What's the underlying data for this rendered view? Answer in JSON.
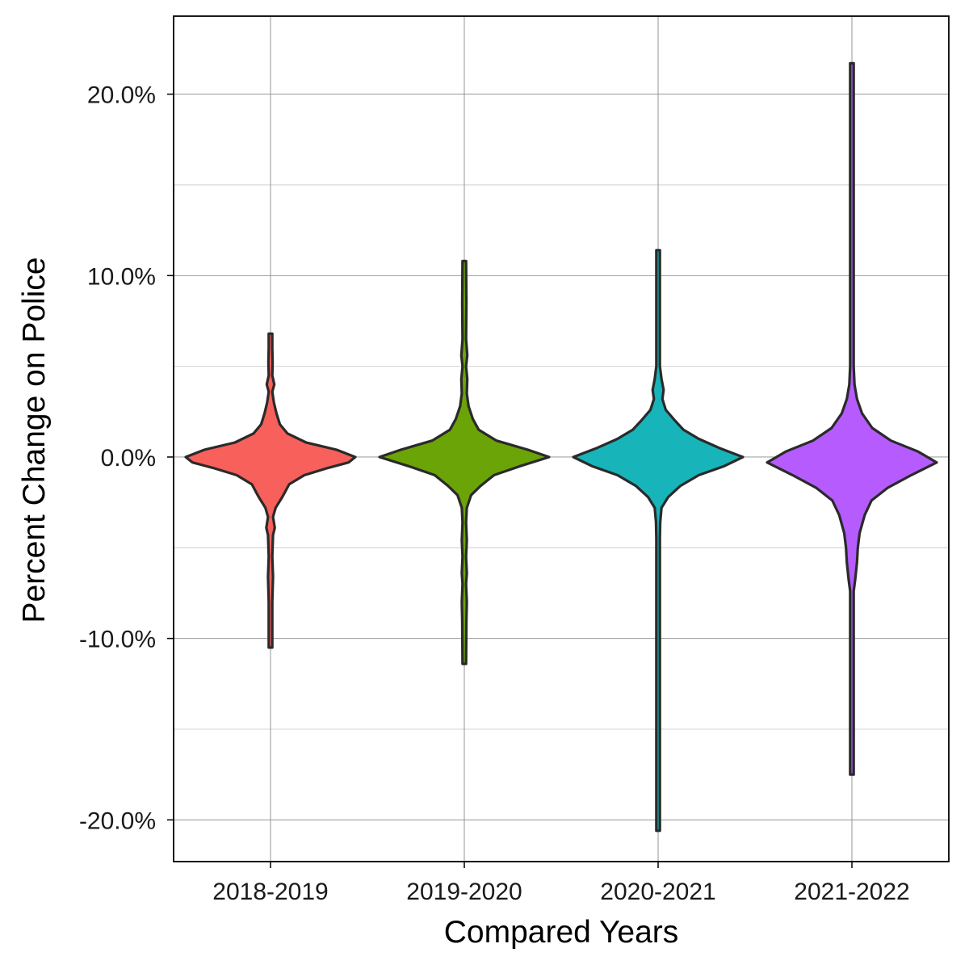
{
  "chart_data": {
    "type": "violin",
    "title": "",
    "xlabel": "Compared Years",
    "ylabel": "Percent Change on Police",
    "ylim": [
      -22.3,
      24.3
    ],
    "y_ticks": [
      -20,
      -10,
      0,
      10,
      20
    ],
    "y_tick_labels": [
      "-20.0%",
      "-10.0%",
      "0.0%",
      "10.0%",
      "20.0%"
    ],
    "y_minor_ticks": [
      -15,
      -5,
      5,
      15
    ],
    "grid": true,
    "legend": "none",
    "categories": [
      "2018-2019",
      "2019-2020",
      "2020-2021",
      "2021-2022"
    ],
    "series": [
      {
        "category": "2018-2019",
        "color": "#F8605B",
        "min": -10.5,
        "max": 6.8,
        "density_profile": [
          [
            -10.5,
            0.02
          ],
          [
            -8.0,
            0.02
          ],
          [
            -6.6,
            0.03
          ],
          [
            -5.5,
            0.02
          ],
          [
            -4.3,
            0.03
          ],
          [
            -3.9,
            0.05
          ],
          [
            -3.3,
            0.03
          ],
          [
            -2.8,
            0.06
          ],
          [
            -2.2,
            0.14
          ],
          [
            -1.5,
            0.22
          ],
          [
            -1.0,
            0.4
          ],
          [
            -0.6,
            0.68
          ],
          [
            -0.3,
            0.92
          ],
          [
            0.0,
            1.0
          ],
          [
            0.4,
            0.78
          ],
          [
            0.8,
            0.42
          ],
          [
            1.3,
            0.2
          ],
          [
            1.8,
            0.11
          ],
          [
            2.4,
            0.07
          ],
          [
            3.0,
            0.04
          ],
          [
            3.6,
            0.02
          ],
          [
            4.0,
            0.045
          ],
          [
            4.5,
            0.02
          ],
          [
            5.2,
            0.025
          ],
          [
            6.0,
            0.015
          ],
          [
            6.8,
            0.01
          ]
        ]
      },
      {
        "category": "2019-2020",
        "color": "#6BA406",
        "min": -11.4,
        "max": 10.8,
        "density_profile": [
          [
            -11.4,
            0.02
          ],
          [
            -9.0,
            0.025
          ],
          [
            -8.0,
            0.03
          ],
          [
            -7.0,
            0.02
          ],
          [
            -6.4,
            0.03
          ],
          [
            -5.5,
            0.015
          ],
          [
            -4.6,
            0.03
          ],
          [
            -3.6,
            0.015
          ],
          [
            -2.8,
            0.03
          ],
          [
            -2.1,
            0.08
          ],
          [
            -1.6,
            0.19
          ],
          [
            -1.0,
            0.35
          ],
          [
            -0.5,
            0.66
          ],
          [
            0.0,
            1.0
          ],
          [
            0.4,
            0.75
          ],
          [
            0.9,
            0.38
          ],
          [
            1.5,
            0.17
          ],
          [
            2.1,
            0.1
          ],
          [
            2.8,
            0.05
          ],
          [
            3.5,
            0.03
          ],
          [
            4.3,
            0.035
          ],
          [
            5.0,
            0.02
          ],
          [
            5.6,
            0.035
          ],
          [
            6.5,
            0.02
          ],
          [
            8.5,
            0.025
          ],
          [
            10.8,
            0.01
          ]
        ]
      },
      {
        "category": "2020-2021",
        "color": "#17B4BA",
        "min": -20.6,
        "max": 11.4,
        "density_profile": [
          [
            -20.6,
            0.01
          ],
          [
            -12.0,
            0.012
          ],
          [
            -10.0,
            0.013
          ],
          [
            -7.5,
            0.02
          ],
          [
            -6.0,
            0.015
          ],
          [
            -4.5,
            0.02
          ],
          [
            -3.6,
            0.025
          ],
          [
            -2.8,
            0.04
          ],
          [
            -2.2,
            0.12
          ],
          [
            -1.6,
            0.26
          ],
          [
            -1.0,
            0.48
          ],
          [
            -0.5,
            0.78
          ],
          [
            0.0,
            1.0
          ],
          [
            0.5,
            0.72
          ],
          [
            1.0,
            0.48
          ],
          [
            1.5,
            0.3
          ],
          [
            2.0,
            0.2
          ],
          [
            2.6,
            0.09
          ],
          [
            3.2,
            0.05
          ],
          [
            3.7,
            0.065
          ],
          [
            4.3,
            0.04
          ],
          [
            5.0,
            0.015
          ],
          [
            7.0,
            0.015
          ],
          [
            9.0,
            0.02
          ],
          [
            11.4,
            0.01
          ]
        ]
      },
      {
        "category": "2021-2022",
        "color": "#B65CFE",
        "min": -17.5,
        "max": 21.7,
        "density_profile": [
          [
            -17.5,
            0.01
          ],
          [
            -12.0,
            0.013
          ],
          [
            -9.0,
            0.015
          ],
          [
            -7.4,
            0.02
          ],
          [
            -6.7,
            0.04
          ],
          [
            -5.8,
            0.06
          ],
          [
            -5.0,
            0.07
          ],
          [
            -4.2,
            0.09
          ],
          [
            -3.2,
            0.15
          ],
          [
            -2.4,
            0.23
          ],
          [
            -1.7,
            0.42
          ],
          [
            -1.0,
            0.7
          ],
          [
            -0.3,
            1.0
          ],
          [
            0.3,
            0.78
          ],
          [
            0.9,
            0.46
          ],
          [
            1.6,
            0.24
          ],
          [
            2.4,
            0.12
          ],
          [
            3.2,
            0.06
          ],
          [
            4.0,
            0.03
          ],
          [
            5.0,
            0.015
          ],
          [
            7.0,
            0.015
          ],
          [
            10.0,
            0.015
          ],
          [
            13.0,
            0.015
          ],
          [
            21.7,
            0.01
          ]
        ]
      }
    ]
  }
}
